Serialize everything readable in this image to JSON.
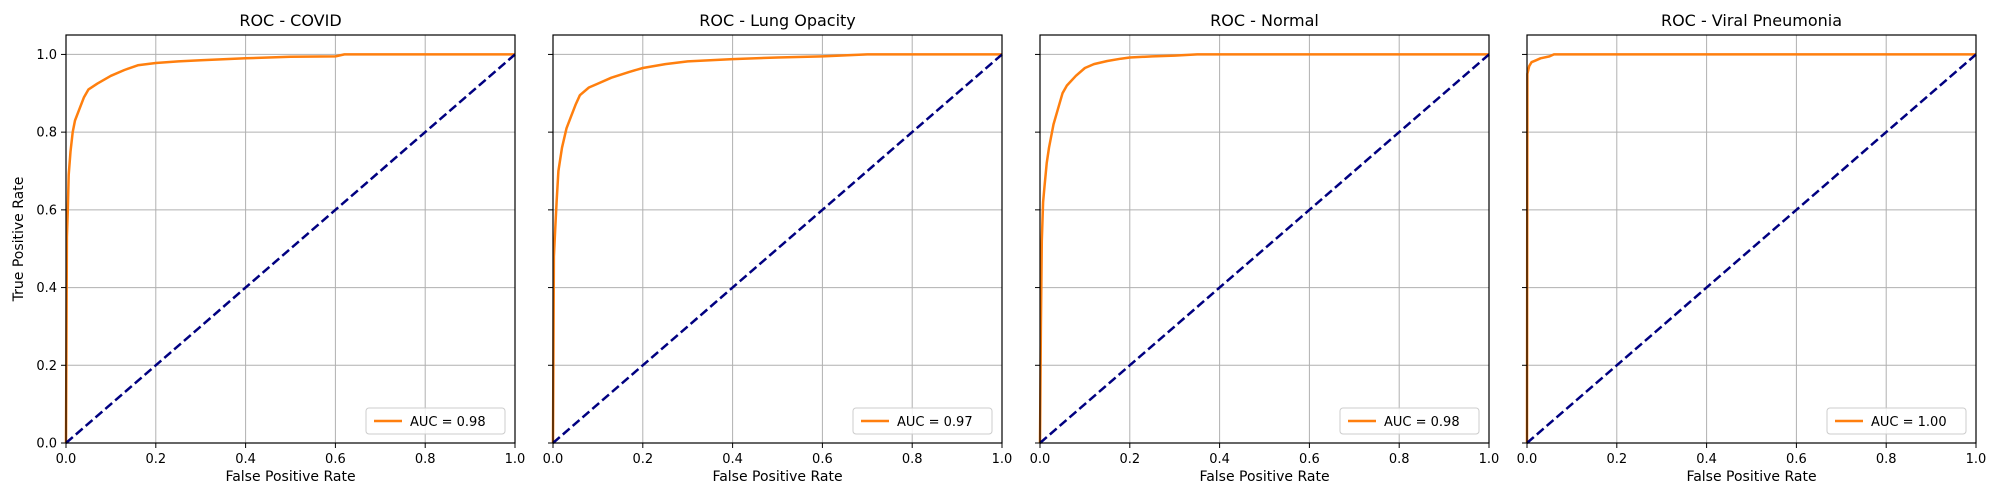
{
  "figure": {
    "ylabel": "True Positive Rate"
  },
  "chart_data": [
    {
      "type": "line",
      "title": "ROC - COVID",
      "xlabel": "False Positive Rate",
      "ylabel": "True Positive Rate",
      "xlim": [
        0,
        1
      ],
      "ylim": [
        0,
        1.05
      ],
      "xticks": [
        "0.0",
        "0.2",
        "0.4",
        "0.6",
        "0.8",
        "1.0"
      ],
      "yticks": [
        "0.0",
        "0.2",
        "0.4",
        "0.6",
        "0.8",
        "1.0"
      ],
      "grid": true,
      "legend_position": "lower-right",
      "series": [
        {
          "name": "AUC = 0.98",
          "color": "#ff7f0e",
          "style": "solid",
          "x": [
            0,
            0.002,
            0.004,
            0.006,
            0.01,
            0.015,
            0.02,
            0.03,
            0.04,
            0.05,
            0.07,
            0.1,
            0.13,
            0.16,
            0.2,
            0.25,
            0.3,
            0.4,
            0.5,
            0.6,
            0.62,
            0.8,
            1.0
          ],
          "y": [
            0,
            0.53,
            0.6,
            0.69,
            0.75,
            0.8,
            0.83,
            0.86,
            0.89,
            0.91,
            0.925,
            0.945,
            0.96,
            0.972,
            0.978,
            0.982,
            0.985,
            0.99,
            0.994,
            0.995,
            1.0,
            1.0,
            1.0
          ]
        },
        {
          "name": "",
          "color": "#000080",
          "style": "dashed",
          "x": [
            0,
            1
          ],
          "y": [
            0,
            1
          ]
        }
      ]
    },
    {
      "type": "line",
      "title": "ROC - Lung Opacity",
      "xlabel": "False Positive Rate",
      "ylabel": "",
      "xlim": [
        0,
        1
      ],
      "ylim": [
        0,
        1.05
      ],
      "xticks": [
        "0.0",
        "0.2",
        "0.4",
        "0.6",
        "0.8",
        "1.0"
      ],
      "yticks": [
        "0.0",
        "0.2",
        "0.4",
        "0.6",
        "0.8",
        "1.0"
      ],
      "grid": true,
      "legend_position": "lower-right",
      "series": [
        {
          "name": "AUC = 0.97",
          "color": "#ff7f0e",
          "style": "solid",
          "x": [
            0,
            0.002,
            0.005,
            0.008,
            0.012,
            0.02,
            0.03,
            0.04,
            0.05,
            0.06,
            0.08,
            0.1,
            0.13,
            0.17,
            0.2,
            0.25,
            0.3,
            0.4,
            0.5,
            0.6,
            0.7,
            0.8,
            1.0
          ],
          "y": [
            0,
            0.48,
            0.55,
            0.62,
            0.7,
            0.76,
            0.81,
            0.84,
            0.87,
            0.895,
            0.915,
            0.925,
            0.94,
            0.955,
            0.965,
            0.975,
            0.982,
            0.988,
            0.992,
            0.995,
            1.0,
            1.0,
            1.0
          ]
        },
        {
          "name": "",
          "color": "#000080",
          "style": "dashed",
          "x": [
            0,
            1
          ],
          "y": [
            0,
            1
          ]
        }
      ]
    },
    {
      "type": "line",
      "title": "ROC - Normal",
      "xlabel": "False Positive Rate",
      "ylabel": "",
      "xlim": [
        0,
        1
      ],
      "ylim": [
        0,
        1.05
      ],
      "xticks": [
        "0.0",
        "0.2",
        "0.4",
        "0.6",
        "0.8",
        "1.0"
      ],
      "yticks": [
        "0.0",
        "0.2",
        "0.4",
        "0.6",
        "0.8",
        "1.0"
      ],
      "grid": true,
      "legend_position": "lower-right",
      "series": [
        {
          "name": "AUC = 0.98",
          "color": "#ff7f0e",
          "style": "solid",
          "x": [
            0,
            0.002,
            0.004,
            0.007,
            0.01,
            0.015,
            0.02,
            0.03,
            0.04,
            0.05,
            0.06,
            0.08,
            0.1,
            0.12,
            0.15,
            0.18,
            0.2,
            0.25,
            0.3,
            0.35,
            0.5,
            0.7,
            1.0
          ],
          "y": [
            0,
            0.3,
            0.52,
            0.62,
            0.66,
            0.72,
            0.76,
            0.82,
            0.86,
            0.9,
            0.92,
            0.945,
            0.965,
            0.975,
            0.983,
            0.989,
            0.992,
            0.995,
            0.997,
            1.0,
            1.0,
            1.0,
            1.0
          ]
        },
        {
          "name": "",
          "color": "#000080",
          "style": "dashed",
          "x": [
            0,
            1
          ],
          "y": [
            0,
            1
          ]
        }
      ]
    },
    {
      "type": "line",
      "title": "ROC - Viral Pneumonia",
      "xlabel": "False Positive Rate",
      "ylabel": "",
      "xlim": [
        0,
        1
      ],
      "ylim": [
        0,
        1.05
      ],
      "xticks": [
        "0.0",
        "0.2",
        "0.4",
        "0.6",
        "0.8",
        "1.0"
      ],
      "yticks": [
        "0.0",
        "0.2",
        "0.4",
        "0.6",
        "0.8",
        "1.0"
      ],
      "grid": true,
      "legend_position": "lower-right",
      "series": [
        {
          "name": "AUC = 1.00",
          "color": "#ff7f0e",
          "style": "solid",
          "x": [
            0,
            0.001,
            0.003,
            0.005,
            0.01,
            0.02,
            0.03,
            0.05,
            0.06,
            0.1,
            0.2,
            0.5,
            1.0
          ],
          "y": [
            0,
            0.95,
            0.96,
            0.97,
            0.98,
            0.985,
            0.99,
            0.995,
            1.0,
            1.0,
            1.0,
            1.0,
            1.0
          ]
        },
        {
          "name": "",
          "color": "#000080",
          "style": "dashed",
          "x": [
            0,
            1
          ],
          "y": [
            0,
            1
          ]
        }
      ]
    }
  ]
}
